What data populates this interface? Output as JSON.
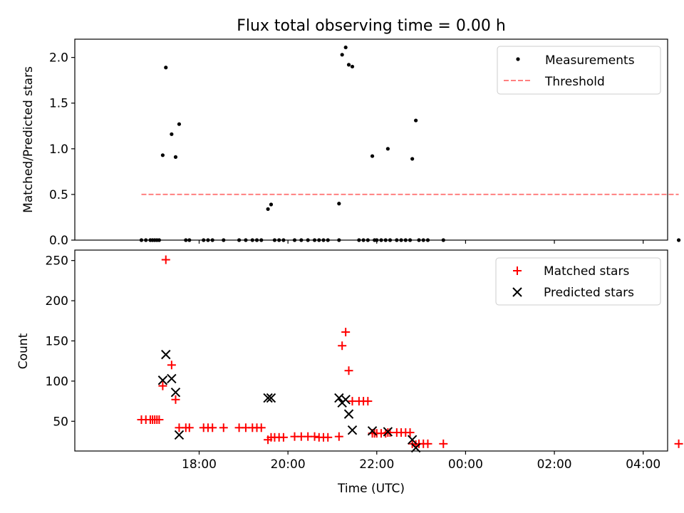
{
  "chart_data": [
    {
      "type": "scatter",
      "title": "Flux total observing time = 0.00 h",
      "xlabel": "",
      "ylabel": "Matched/Predicted stars",
      "x_unit": "hours since 00:00 UTC of first night (values past 24 = next day)",
      "xlim": [
        15.2,
        28.55
      ],
      "ylim": [
        0,
        2.2
      ],
      "yticks": [
        0.0,
        0.5,
        1.0,
        1.5,
        2.0
      ],
      "ytick_labels": [
        "0.0",
        "0.5",
        "1.0",
        "1.5",
        "2.0"
      ],
      "legend_position": "upper right",
      "series": [
        {
          "name": "Measurements",
          "kind": "dots",
          "color": "#000000",
          "points": [
            [
              16.7,
              0
            ],
            [
              16.8,
              0
            ],
            [
              16.9,
              0
            ],
            [
              16.95,
              0
            ],
            [
              17.0,
              0
            ],
            [
              17.05,
              0
            ],
            [
              17.1,
              0
            ],
            [
              17.18,
              0.93
            ],
            [
              17.25,
              1.89
            ],
            [
              17.38,
              1.16
            ],
            [
              17.47,
              0.91
            ],
            [
              17.55,
              1.27
            ],
            [
              17.7,
              0
            ],
            [
              17.78,
              0
            ],
            [
              18.1,
              0
            ],
            [
              18.2,
              0
            ],
            [
              18.3,
              0
            ],
            [
              18.55,
              0
            ],
            [
              18.9,
              0
            ],
            [
              19.05,
              0
            ],
            [
              19.2,
              0
            ],
            [
              19.3,
              0
            ],
            [
              19.4,
              0
            ],
            [
              19.55,
              0.34
            ],
            [
              19.62,
              0.39
            ],
            [
              19.7,
              0
            ],
            [
              19.8,
              0
            ],
            [
              19.9,
              0
            ],
            [
              20.15,
              0
            ],
            [
              20.3,
              0
            ],
            [
              20.45,
              0
            ],
            [
              20.6,
              0
            ],
            [
              20.7,
              0
            ],
            [
              20.8,
              0
            ],
            [
              20.9,
              0
            ],
            [
              21.15,
              0.4
            ],
            [
              21.15,
              0
            ],
            [
              21.22,
              2.03
            ],
            [
              21.3,
              2.11
            ],
            [
              21.37,
              1.92
            ],
            [
              21.45,
              1.9
            ],
            [
              21.6,
              0
            ],
            [
              21.7,
              0
            ],
            [
              21.8,
              0
            ],
            [
              21.9,
              0.92
            ],
            [
              21.95,
              0
            ],
            [
              22.0,
              0
            ],
            [
              22.1,
              0
            ],
            [
              22.2,
              0
            ],
            [
              22.25,
              1.0
            ],
            [
              22.3,
              0
            ],
            [
              22.45,
              0
            ],
            [
              22.55,
              0
            ],
            [
              22.65,
              0
            ],
            [
              22.75,
              0
            ],
            [
              22.8,
              0.89
            ],
            [
              22.88,
              1.31
            ],
            [
              22.95,
              0
            ],
            [
              23.05,
              0
            ],
            [
              23.15,
              0
            ],
            [
              23.5,
              0
            ],
            [
              28.8,
              0
            ]
          ]
        },
        {
          "name": "Threshold",
          "kind": "dashed-line",
          "color": "#ff8080",
          "points": [
            [
              16.7,
              0.5
            ],
            [
              28.8,
              0.5
            ]
          ]
        }
      ]
    },
    {
      "type": "scatter",
      "title": "",
      "xlabel": "Time (UTC)",
      "ylabel": "Count",
      "x_unit": "hours since 00:00 UTC of first night (values past 24 = next day)",
      "xlim": [
        15.2,
        28.55
      ],
      "ylim": [
        13,
        263
      ],
      "yticks": [
        50,
        100,
        150,
        200,
        250
      ],
      "ytick_labels": [
        "50",
        "100",
        "150",
        "200",
        "250"
      ],
      "xticks": [
        18,
        20,
        22,
        24,
        26,
        28
      ],
      "xtick_labels": [
        "18:00",
        "20:00",
        "22:00",
        "00:00",
        "02:00",
        "04:00"
      ],
      "legend_position": "upper right",
      "series": [
        {
          "name": "Matched stars",
          "kind": "plus",
          "color": "#ff0000",
          "points": [
            [
              16.7,
              52
            ],
            [
              16.8,
              52
            ],
            [
              16.9,
              52
            ],
            [
              16.95,
              52
            ],
            [
              17.0,
              52
            ],
            [
              17.05,
              52
            ],
            [
              17.1,
              52
            ],
            [
              17.18,
              94
            ],
            [
              17.25,
              251
            ],
            [
              17.38,
              120
            ],
            [
              17.47,
              77
            ],
            [
              17.55,
              42
            ],
            [
              17.7,
              42
            ],
            [
              17.78,
              42
            ],
            [
              18.1,
              42
            ],
            [
              18.2,
              42
            ],
            [
              18.3,
              42
            ],
            [
              18.55,
              42
            ],
            [
              18.9,
              42
            ],
            [
              19.05,
              42
            ],
            [
              19.2,
              42
            ],
            [
              19.3,
              42
            ],
            [
              19.4,
              42
            ],
            [
              19.55,
              27
            ],
            [
              19.62,
              30
            ],
            [
              19.7,
              30
            ],
            [
              19.8,
              30
            ],
            [
              19.9,
              30
            ],
            [
              20.15,
              31
            ],
            [
              20.3,
              31
            ],
            [
              20.45,
              31
            ],
            [
              20.6,
              31
            ],
            [
              20.7,
              30
            ],
            [
              20.8,
              30
            ],
            [
              20.9,
              30
            ],
            [
              21.15,
              31
            ],
            [
              21.22,
              144
            ],
            [
              21.3,
              161
            ],
            [
              21.37,
              113
            ],
            [
              21.45,
              75
            ],
            [
              21.6,
              75
            ],
            [
              21.7,
              75
            ],
            [
              21.8,
              75
            ],
            [
              21.9,
              35
            ],
            [
              21.95,
              35
            ],
            [
              22.0,
              35
            ],
            [
              22.1,
              35
            ],
            [
              22.2,
              35
            ],
            [
              22.25,
              36
            ],
            [
              22.3,
              36
            ],
            [
              22.45,
              36
            ],
            [
              22.55,
              36
            ],
            [
              22.65,
              36
            ],
            [
              22.75,
              36
            ],
            [
              22.8,
              22
            ],
            [
              22.88,
              21
            ],
            [
              22.95,
              22
            ],
            [
              23.05,
              22
            ],
            [
              23.15,
              22
            ],
            [
              23.5,
              22
            ],
            [
              28.8,
              22
            ]
          ]
        },
        {
          "name": "Predicted stars",
          "kind": "x",
          "color": "#000000",
          "points": [
            [
              17.18,
              101
            ],
            [
              17.25,
              133
            ],
            [
              17.38,
              103
            ],
            [
              17.47,
              86
            ],
            [
              17.55,
              33
            ],
            [
              19.55,
              79
            ],
            [
              19.62,
              79
            ],
            [
              21.15,
              79
            ],
            [
              21.22,
              73
            ],
            [
              21.3,
              77
            ],
            [
              21.37,
              59
            ],
            [
              21.45,
              39
            ],
            [
              21.9,
              38
            ],
            [
              22.25,
              37
            ],
            [
              22.8,
              27
            ],
            [
              22.88,
              17
            ]
          ]
        }
      ]
    }
  ]
}
